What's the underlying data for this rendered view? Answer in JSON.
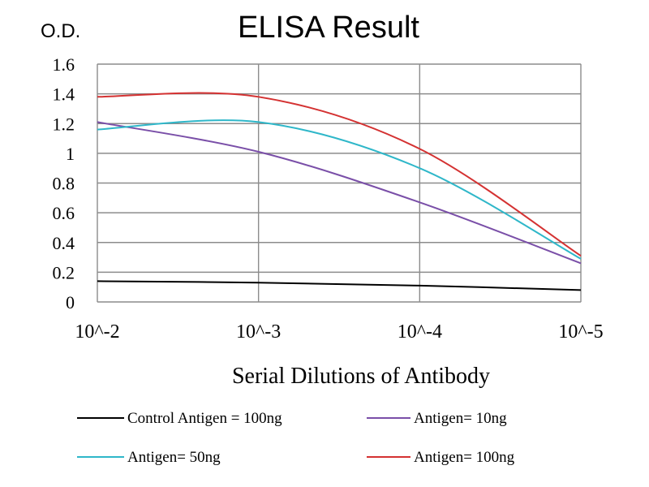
{
  "chart_data": {
    "type": "line",
    "title": "ELISA Result",
    "ylabel": "O.D.",
    "xlabel": "Serial  Dilutions  of Antibody",
    "categories": [
      "10^-2",
      "10^-3",
      "10^-4",
      "10^-5"
    ],
    "ylim": [
      0,
      1.6
    ],
    "yticks": [
      "0",
      "0.2",
      "0.4",
      "0.6",
      "0.8",
      "1",
      "1.2",
      "1.4",
      "1.6"
    ],
    "grid": true,
    "legend_position": "bottom",
    "series": [
      {
        "name": "Control Antigen = 100ng",
        "color": "#000000",
        "values": [
          0.14,
          0.13,
          0.11,
          0.08
        ]
      },
      {
        "name": "Antigen= 10ng",
        "color": "#7a4fa8",
        "values": [
          1.21,
          1.01,
          0.67,
          0.26
        ]
      },
      {
        "name": "Antigen= 50ng",
        "color": "#2fb7c9",
        "values": [
          1.16,
          1.21,
          0.9,
          0.29
        ]
      },
      {
        "name": "Antigen= 100ng",
        "color": "#d43232",
        "values": [
          1.38,
          1.38,
          1.03,
          0.31
        ]
      }
    ]
  }
}
